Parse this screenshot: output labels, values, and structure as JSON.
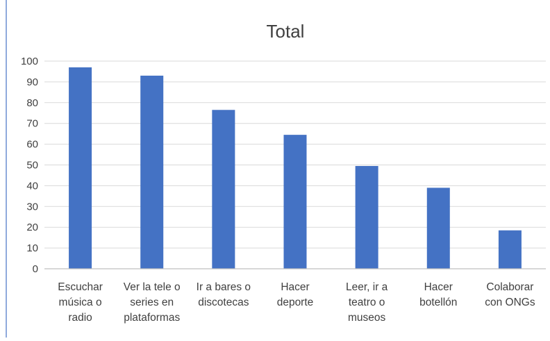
{
  "chart_data": {
    "type": "bar",
    "title": "Total",
    "xlabel": "",
    "ylabel": "",
    "categories": [
      [
        "Escuchar",
        "música o",
        "radio"
      ],
      [
        "Ver la tele o",
        "series en",
        "plataformas"
      ],
      [
        "Ir a bares o",
        "discotecas"
      ],
      [
        "Hacer",
        "deporte"
      ],
      [
        "Leer, ir a",
        "teatro o",
        "museos"
      ],
      [
        "Hacer",
        "botellón"
      ],
      [
        "Colaborar",
        "con ONGs"
      ]
    ],
    "values": [
      97,
      93,
      76.5,
      64.5,
      49.5,
      39,
      18.5
    ],
    "ylim": [
      0,
      100
    ],
    "yticks": [
      0,
      10,
      20,
      30,
      40,
      50,
      60,
      70,
      80,
      90,
      100
    ],
    "grid": true,
    "legend": "none",
    "bar_color": "#4472c4"
  }
}
